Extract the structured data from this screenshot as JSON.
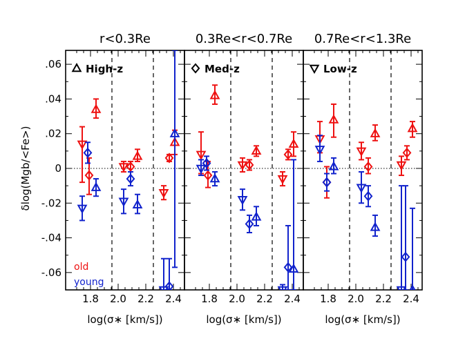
{
  "chart_data": {
    "type": "scatter",
    "ylabel": "δlog(Mgb/<Fe>)",
    "xlabel": "log(σ∗ [km/s])",
    "xlim": [
      1.62,
      2.48
    ],
    "ylim": [
      -0.07,
      0.068
    ],
    "xticks": [
      1.8,
      2.0,
      2.2,
      2.4
    ],
    "xtick_labels": [
      "1.8",
      "2.0",
      "2.2",
      "2.4"
    ],
    "yticks": [
      0.06,
      0.04,
      0.02,
      0,
      -0.02,
      -0.04,
      -0.06
    ],
    "ytick_labels": [
      ".06",
      ".04",
      ".02",
      "0",
      "-.02",
      "-.04",
      "-.06"
    ],
    "vlines": [
      1.955,
      2.255
    ],
    "hline": 0,
    "colors": {
      "old": "#ee1111",
      "young": "#1122cc"
    },
    "legend": {
      "old": "old",
      "young": "young"
    },
    "panels": [
      {
        "title": "r<0.3Re",
        "label": "High-z",
        "marker": "triangle-up",
        "points": [
          {
            "group": "old",
            "marker": "triangle-down",
            "x": 1.74,
            "y": 0.014,
            "lo": -0.008,
            "hi": 0.024
          },
          {
            "group": "old",
            "marker": "diamond",
            "x": 1.79,
            "y": -0.004,
            "lo": -0.015,
            "hi": 0.006
          },
          {
            "group": "old",
            "marker": "triangle-up",
            "x": 1.84,
            "y": 0.034,
            "lo": 0.029,
            "hi": 0.04
          },
          {
            "group": "young",
            "marker": "triangle-down",
            "x": 1.74,
            "y": -0.023,
            "lo": -0.03,
            "hi": -0.016
          },
          {
            "group": "young",
            "marker": "diamond",
            "x": 1.78,
            "y": 0.009,
            "lo": 0.003,
            "hi": 0.015
          },
          {
            "group": "young",
            "marker": "triangle-up",
            "x": 1.84,
            "y": -0.011,
            "lo": -0.016,
            "hi": -0.006
          },
          {
            "group": "old",
            "marker": "triangle-down",
            "x": 2.04,
            "y": 0.001,
            "lo": -0.002,
            "hi": 0.004
          },
          {
            "group": "old",
            "marker": "diamond",
            "x": 2.09,
            "y": 0.001,
            "lo": -0.002,
            "hi": 0.004
          },
          {
            "group": "old",
            "marker": "triangle-up",
            "x": 2.14,
            "y": 0.007,
            "lo": 0.004,
            "hi": 0.011
          },
          {
            "group": "young",
            "marker": "triangle-down",
            "x": 2.04,
            "y": -0.019,
            "lo": -0.026,
            "hi": -0.012
          },
          {
            "group": "young",
            "marker": "diamond",
            "x": 2.09,
            "y": -0.006,
            "lo": -0.01,
            "hi": -0.002
          },
          {
            "group": "young",
            "marker": "triangle-up",
            "x": 2.14,
            "y": -0.021,
            "lo": -0.026,
            "hi": -0.015
          },
          {
            "group": "old",
            "marker": "triangle-down",
            "x": 2.33,
            "y": -0.014,
            "lo": -0.018,
            "hi": -0.01
          },
          {
            "group": "old",
            "marker": "diamond",
            "x": 2.37,
            "y": 0.006,
            "lo": 0.004,
            "hi": 0.008
          },
          {
            "group": "old",
            "marker": "triangle-up",
            "x": 2.41,
            "y": 0.015,
            "lo": 0.008,
            "hi": 0.022
          },
          {
            "group": "young",
            "marker": "triangle-down",
            "x": 2.33,
            "y": -0.07,
            "lo": -0.07,
            "hi": -0.052
          },
          {
            "group": "young",
            "marker": "diamond",
            "x": 2.37,
            "y": -0.068,
            "lo": -0.07,
            "hi": -0.052
          },
          {
            "group": "young",
            "marker": "triangle-up",
            "x": 2.41,
            "y": 0.02,
            "lo": -0.057,
            "hi": 0.068
          }
        ]
      },
      {
        "title": "0.3Re<r<0.7Re",
        "label": "Med-z",
        "marker": "diamond",
        "points": [
          {
            "group": "old",
            "marker": "triangle-down",
            "x": 1.74,
            "y": 0.008,
            "lo": -0.003,
            "hi": 0.021
          },
          {
            "group": "old",
            "marker": "diamond",
            "x": 1.79,
            "y": -0.004,
            "lo": -0.011,
            "hi": 0.004
          },
          {
            "group": "old",
            "marker": "triangle-up",
            "x": 1.84,
            "y": 0.042,
            "lo": 0.037,
            "hi": 0.048
          },
          {
            "group": "young",
            "marker": "triangle-down",
            "x": 1.74,
            "y": 0.0,
            "lo": -0.004,
            "hi": 0.005
          },
          {
            "group": "young",
            "marker": "diamond",
            "x": 1.78,
            "y": 0.003,
            "lo": -0.001,
            "hi": 0.007
          },
          {
            "group": "young",
            "marker": "triangle-up",
            "x": 1.84,
            "y": -0.006,
            "lo": -0.01,
            "hi": -0.002
          },
          {
            "group": "old",
            "marker": "triangle-down",
            "x": 2.04,
            "y": 0.002,
            "lo": -0.002,
            "hi": 0.006
          },
          {
            "group": "old",
            "marker": "diamond",
            "x": 2.09,
            "y": 0.002,
            "lo": -0.001,
            "hi": 0.005
          },
          {
            "group": "old",
            "marker": "triangle-up",
            "x": 2.14,
            "y": 0.01,
            "lo": 0.007,
            "hi": 0.013
          },
          {
            "group": "young",
            "marker": "triangle-down",
            "x": 2.04,
            "y": -0.018,
            "lo": -0.024,
            "hi": -0.012
          },
          {
            "group": "young",
            "marker": "diamond",
            "x": 2.09,
            "y": -0.032,
            "lo": -0.037,
            "hi": -0.027
          },
          {
            "group": "young",
            "marker": "triangle-up",
            "x": 2.14,
            "y": -0.028,
            "lo": -0.033,
            "hi": -0.022
          },
          {
            "group": "old",
            "marker": "triangle-down",
            "x": 2.33,
            "y": -0.006,
            "lo": -0.01,
            "hi": -0.002
          },
          {
            "group": "old",
            "marker": "diamond",
            "x": 2.37,
            "y": 0.008,
            "lo": 0.005,
            "hi": 0.011
          },
          {
            "group": "old",
            "marker": "triangle-up",
            "x": 2.41,
            "y": 0.014,
            "lo": 0.007,
            "hi": 0.021
          },
          {
            "group": "young",
            "marker": "triangle-down",
            "x": 2.33,
            "y": -0.07,
            "lo": -0.07,
            "hi": -0.067
          },
          {
            "group": "young",
            "marker": "diamond",
            "x": 2.37,
            "y": -0.057,
            "lo": -0.07,
            "hi": -0.033
          },
          {
            "group": "young",
            "marker": "triangle-up",
            "x": 2.41,
            "y": -0.058,
            "lo": -0.07,
            "hi": 0.005
          }
        ]
      },
      {
        "title": "0.7Re<r<1.3Re",
        "label": "Low-z",
        "marker": "triangle-down",
        "points": [
          {
            "group": "old",
            "marker": "triangle-down",
            "x": 1.74,
            "y": 0.017,
            "lo": 0.009,
            "hi": 0.027
          },
          {
            "group": "old",
            "marker": "diamond",
            "x": 1.79,
            "y": -0.008,
            "lo": -0.017,
            "hi": 0.001
          },
          {
            "group": "old",
            "marker": "triangle-up",
            "x": 1.84,
            "y": 0.028,
            "lo": 0.018,
            "hi": 0.037
          },
          {
            "group": "young",
            "marker": "triangle-down",
            "x": 1.74,
            "y": 0.011,
            "lo": 0.004,
            "hi": 0.019
          },
          {
            "group": "young",
            "marker": "diamond",
            "x": 1.79,
            "y": -0.008,
            "lo": -0.013,
            "hi": -0.003
          },
          {
            "group": "young",
            "marker": "triangle-up",
            "x": 1.84,
            "y": 0.001,
            "lo": -0.003,
            "hi": 0.006
          },
          {
            "group": "old",
            "marker": "triangle-down",
            "x": 2.04,
            "y": 0.01,
            "lo": 0.005,
            "hi": 0.015
          },
          {
            "group": "old",
            "marker": "diamond",
            "x": 2.09,
            "y": 0.001,
            "lo": -0.003,
            "hi": 0.006
          },
          {
            "group": "old",
            "marker": "triangle-up",
            "x": 2.14,
            "y": 0.02,
            "lo": 0.016,
            "hi": 0.025
          },
          {
            "group": "young",
            "marker": "triangle-down",
            "x": 2.04,
            "y": -0.011,
            "lo": -0.02,
            "hi": -0.002
          },
          {
            "group": "young",
            "marker": "diamond",
            "x": 2.09,
            "y": -0.016,
            "lo": -0.022,
            "hi": -0.01
          },
          {
            "group": "young",
            "marker": "triangle-up",
            "x": 2.14,
            "y": -0.034,
            "lo": -0.039,
            "hi": -0.027
          },
          {
            "group": "old",
            "marker": "triangle-down",
            "x": 2.33,
            "y": 0.002,
            "lo": -0.004,
            "hi": 0.007
          },
          {
            "group": "old",
            "marker": "diamond",
            "x": 2.37,
            "y": 0.009,
            "lo": 0.005,
            "hi": 0.013
          },
          {
            "group": "old",
            "marker": "triangle-up",
            "x": 2.41,
            "y": 0.023,
            "lo": 0.018,
            "hi": 0.027
          },
          {
            "group": "young",
            "marker": "triangle-down",
            "x": 2.33,
            "y": -0.07,
            "lo": -0.07,
            "hi": -0.01
          },
          {
            "group": "young",
            "marker": "diamond",
            "x": 2.36,
            "y": -0.051,
            "lo": -0.07,
            "hi": -0.01
          },
          {
            "group": "young",
            "marker": "triangle-up",
            "x": 2.41,
            "y": -0.07,
            "lo": -0.07,
            "hi": -0.023
          }
        ]
      }
    ]
  }
}
